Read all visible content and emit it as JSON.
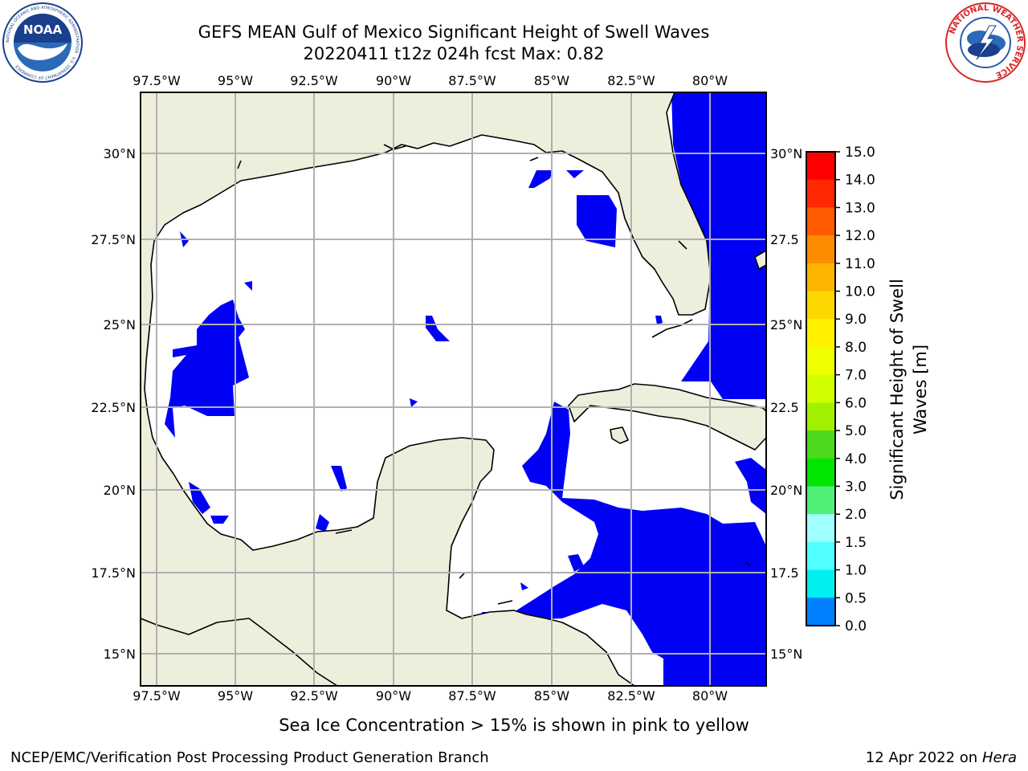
{
  "title": {
    "line1": "GEFS MEAN Gulf of Mexico Significant Height of Swell Waves",
    "line2": "20220411 t12z 024h fcst   Max: 0.82"
  },
  "map": {
    "lon_labels": [
      "97.5°W",
      "95°W",
      "92.5°W",
      "90°W",
      "87.5°W",
      "85°W",
      "82.5°W",
      "80°W"
    ],
    "lat_labels_left": [
      "30°N",
      "27.5°N",
      "25°N",
      "22.5°N",
      "20°N",
      "17.5°N",
      "15°N"
    ],
    "lat_labels_right": [
      "30°N",
      "27.5",
      "25°N",
      "22.5",
      "20°N",
      "17.5",
      "15°N"
    ],
    "colors": {
      "land": "#eeeedc",
      "ocean_low": "#ffffff",
      "swell_0_05": "#0000f5",
      "swell_05_10": "#0080ff",
      "grid": "#b0b0b0"
    }
  },
  "colorbar": {
    "ticks": [
      "15.0",
      "14.0",
      "13.0",
      "12.0",
      "11.0",
      "10.0",
      "9.0",
      "8.0",
      "7.0",
      "6.0",
      "5.0",
      "4.0",
      "3.0",
      "2.0",
      "1.5",
      "1.0",
      "0.5",
      "0.0"
    ],
    "colors": [
      "#ff0000",
      "#ff2800",
      "#ff5a00",
      "#ff8c00",
      "#ffb400",
      "#ffd700",
      "#fff000",
      "#f0ff00",
      "#d2ff00",
      "#a0f000",
      "#4cd91e",
      "#00e600",
      "#50f078",
      "#a0ffff",
      "#50ffff",
      "#00f0f0",
      "#0080ff",
      "#0000f5"
    ],
    "label_line1": "Significant Height of Swell",
    "label_line2": "Waves [m]"
  },
  "note": "Sea Ice Concentration > 15% is shown in pink to yellow",
  "footer": {
    "left": "NCEP/EMC/Verification Post Processing Product Generation Branch",
    "date": "12 Apr 2022 on ",
    "machine": "Hera"
  },
  "logos": {
    "noaa_text": "NOAA",
    "noaa_ring": "NATIONAL OCEANIC AND ATMOSPHERIC ADMINISTRATION · U.S. DEPARTMENT OF COMMERCE",
    "nws_ring": "NATIONAL WEATHER SERVICE"
  }
}
